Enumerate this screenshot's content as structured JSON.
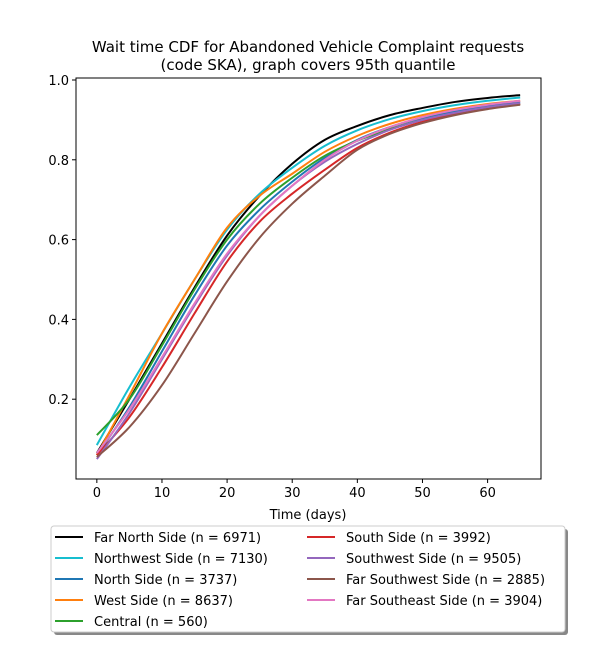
{
  "chart_data": {
    "type": "line",
    "title_lines": [
      "Wait time CDF for Abandoned Vehicle Complaint  requests",
      "(code SKA), graph covers 95th quantile"
    ],
    "xlabel": "Time (days)",
    "ylabel": "",
    "xlim": [
      -3.2,
      68.2
    ],
    "ylim": [
      0.0,
      1.005
    ],
    "xticks": [
      0,
      10,
      20,
      30,
      40,
      50,
      60
    ],
    "yticks": [
      0.2,
      0.4,
      0.6,
      0.8,
      1.0
    ],
    "ytick_labels": [
      "0.2",
      "0.4",
      "0.6",
      "0.8",
      "1.0"
    ],
    "x": [
      0,
      5,
      10,
      15,
      20,
      25,
      30,
      35,
      40,
      45,
      50,
      55,
      60,
      65
    ],
    "series": [
      {
        "name": "Far North Side (n = 6971)",
        "color": "#000000",
        "values": [
          0.065,
          0.2,
          0.34,
          0.48,
          0.61,
          0.71,
          0.79,
          0.85,
          0.885,
          0.912,
          0.93,
          0.945,
          0.955,
          0.962
        ]
      },
      {
        "name": "Northwest Side (n = 7130)",
        "color": "#17becf",
        "values": [
          0.085,
          0.23,
          0.365,
          0.5,
          0.625,
          0.715,
          0.78,
          0.835,
          0.874,
          0.902,
          0.922,
          0.937,
          0.948,
          0.956
        ]
      },
      {
        "name": "North Side (n = 3737)",
        "color": "#1f77b4",
        "values": [
          0.06,
          0.18,
          0.32,
          0.46,
          0.585,
          0.675,
          0.745,
          0.805,
          0.85,
          0.882,
          0.905,
          0.922,
          0.935,
          0.945
        ]
      },
      {
        "name": "West Side (n = 8637)",
        "color": "#ff7f0e",
        "values": [
          0.06,
          0.21,
          0.365,
          0.5,
          0.63,
          0.71,
          0.765,
          0.82,
          0.86,
          0.89,
          0.912,
          0.928,
          0.94,
          0.948
        ]
      },
      {
        "name": "Central (n = 560)",
        "color": "#2ca02c",
        "values": [
          0.11,
          0.2,
          0.335,
          0.475,
          0.6,
          0.69,
          0.755,
          0.81,
          0.848,
          0.877,
          0.9,
          0.917,
          0.93,
          0.94
        ]
      },
      {
        "name": "South Side (n = 3992)",
        "color": "#d62728",
        "values": [
          0.06,
          0.155,
          0.28,
          0.415,
          0.545,
          0.645,
          0.715,
          0.775,
          0.83,
          0.868,
          0.895,
          0.915,
          0.93,
          0.94
        ]
      },
      {
        "name": "Southwest Side (n = 9505)",
        "color": "#9467bd",
        "values": [
          0.05,
          0.165,
          0.3,
          0.435,
          0.56,
          0.66,
          0.735,
          0.795,
          0.84,
          0.875,
          0.9,
          0.918,
          0.932,
          0.942
        ]
      },
      {
        "name": "Far Southwest Side (n = 2885)",
        "color": "#8c564b",
        "values": [
          0.055,
          0.13,
          0.235,
          0.365,
          0.495,
          0.605,
          0.69,
          0.76,
          0.825,
          0.865,
          0.892,
          0.912,
          0.927,
          0.938
        ]
      },
      {
        "name": "Far Southeast Side (n = 3904)",
        "color": "#e377c2",
        "values": [
          0.065,
          0.175,
          0.305,
          0.44,
          0.565,
          0.66,
          0.735,
          0.8,
          0.848,
          0.882,
          0.907,
          0.925,
          0.938,
          0.948
        ]
      }
    ],
    "legend_location": "bottom-center",
    "legend_columns": 2,
    "grid": false
  }
}
